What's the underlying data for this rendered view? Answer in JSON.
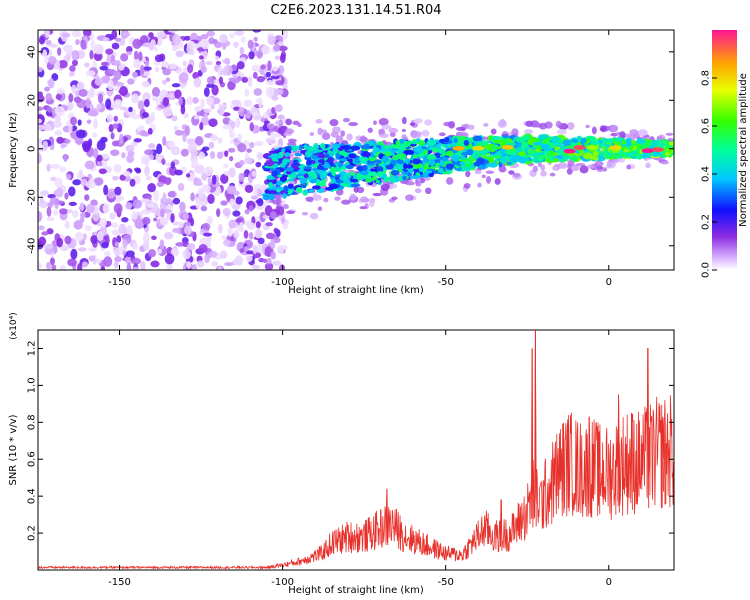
{
  "title": "C2E6.2023.131.14.51.R04",
  "chart_data": [
    {
      "type": "heatmap",
      "xlabel": "Height of straight line (km)",
      "ylabel": "Frequency (Hz)",
      "xlim": [
        -175,
        20
      ],
      "ylim": [
        -50,
        49
      ],
      "xticks": [
        -150,
        -100,
        -50,
        0
      ],
      "yticks": [
        -40,
        -20,
        0,
        20,
        40
      ],
      "colorbar": {
        "label": "Normalized spectral amplitude",
        "range": [
          0,
          1
        ],
        "ticks": [
          "0.0",
          "0.2",
          "0.4",
          "0.6",
          "0.8"
        ]
      },
      "features": [
        {
          "name": "noise",
          "x_range": [
            -175,
            -105
          ],
          "y_range": [
            -50,
            49
          ]
        },
        {
          "name": "signal band",
          "x_range": [
            -105,
            20
          ],
          "center_freq_start": -10,
          "center_freq_end": 0
        }
      ]
    },
    {
      "type": "line",
      "xlabel": "Height of straight line (km)",
      "ylabel": "SNR (10 * v/v)",
      "scale_label": "(x10⁴)",
      "xlim": [
        -175,
        20
      ],
      "ylim": [
        0,
        1.3
      ],
      "xticks": [
        -150,
        -100,
        -50,
        0
      ],
      "yticks": [
        "0.2",
        "0.4",
        "0.6",
        "0.8",
        "1.0",
        "1.2"
      ],
      "color": "#e8302a",
      "series_points": [
        [
          -175,
          0.01
        ],
        [
          -120,
          0.015
        ],
        [
          -105,
          0.015
        ],
        [
          -100,
          0.03
        ],
        [
          -95,
          0.05
        ],
        [
          -88,
          0.1
        ],
        [
          -85,
          0.16
        ],
        [
          -80,
          0.2
        ],
        [
          -75,
          0.2
        ],
        [
          -70,
          0.25
        ],
        [
          -67,
          0.28
        ],
        [
          -62,
          0.2
        ],
        [
          -55,
          0.14
        ],
        [
          -50,
          0.1
        ],
        [
          -45,
          0.09
        ],
        [
          -42,
          0.16
        ],
        [
          -38,
          0.25
        ],
        [
          -35,
          0.2
        ],
        [
          -30,
          0.22
        ],
        [
          -27,
          0.3
        ],
        [
          -25,
          0.35
        ],
        [
          -23,
          0.5
        ],
        [
          -21,
          0.4
        ],
        [
          -18,
          0.5
        ],
        [
          -15,
          0.6
        ],
        [
          -12,
          0.65
        ],
        [
          -8,
          0.6
        ],
        [
          -5,
          0.62
        ],
        [
          0,
          0.58
        ],
        [
          5,
          0.65
        ],
        [
          10,
          0.65
        ],
        [
          15,
          0.7
        ],
        [
          20,
          0.72
        ]
      ],
      "peaks": [
        [
          -22.5,
          1.3
        ],
        [
          -23.5,
          1.2
        ],
        [
          -14,
          0.75
        ],
        [
          -10,
          0.65
        ],
        [
          -6,
          0.83
        ],
        [
          -3,
          0.75
        ],
        [
          3,
          0.95
        ],
        [
          7,
          0.85
        ],
        [
          12,
          1.2
        ],
        [
          17,
          0.82
        ],
        [
          -68,
          0.44
        ],
        [
          -33,
          0.38
        ]
      ]
    }
  ]
}
